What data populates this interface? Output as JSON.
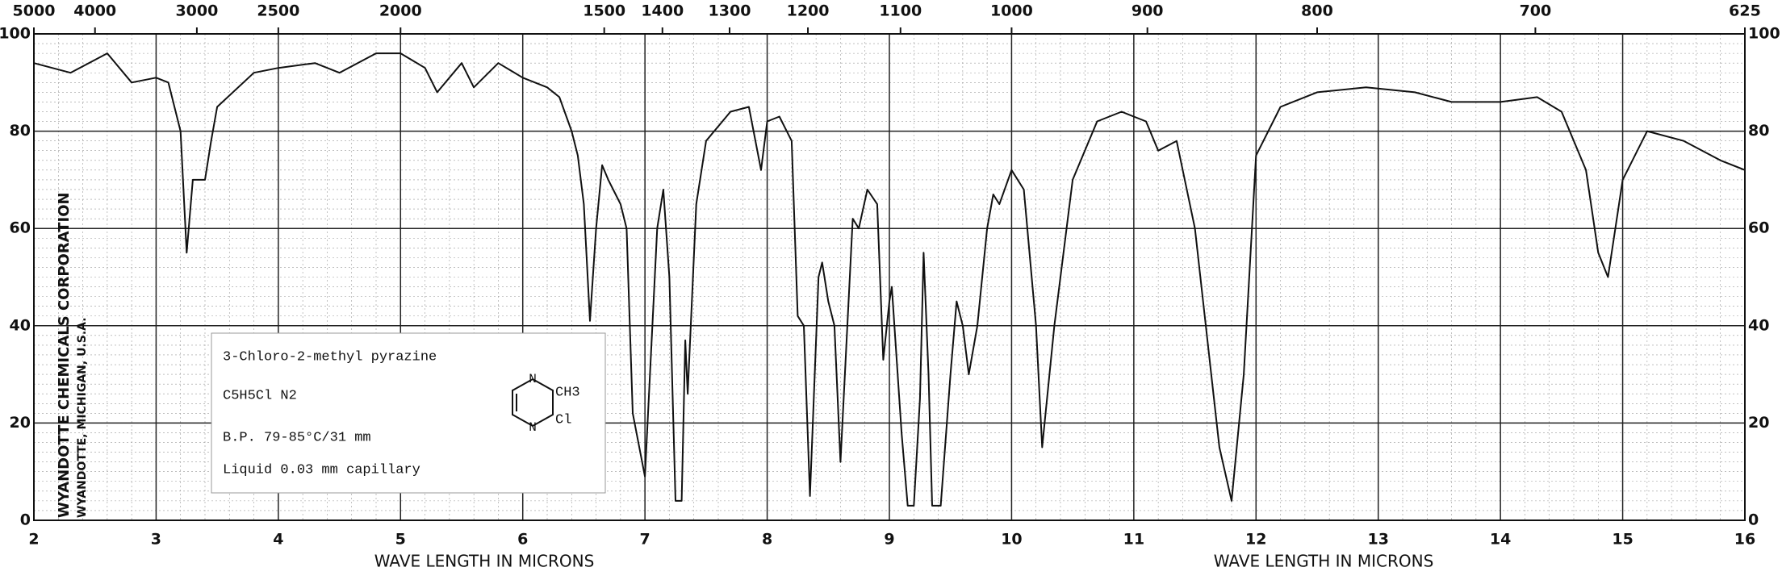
{
  "chart_data": {
    "type": "line",
    "x_label": "WAVE LENGTH IN MICRONS",
    "xlim": [
      2,
      16
    ],
    "xticks": [
      2,
      3,
      4,
      5,
      6,
      7,
      8,
      9,
      10,
      11,
      12,
      13,
      14,
      15,
      16
    ],
    "ylim": [
      0,
      100
    ],
    "yticks": [
      0,
      20,
      40,
      60,
      80,
      100
    ],
    "x2ticks": [
      5000,
      4000,
      3000,
      2500,
      2000,
      1500,
      1400,
      1300,
      1200,
      1100,
      1000,
      900,
      800,
      700,
      625
    ],
    "grid": true,
    "series": [
      {
        "color": "#111111",
        "x": [
          2.0,
          2.3,
          2.6,
          2.8,
          3.0,
          3.1,
          3.2,
          3.25,
          3.3,
          3.4,
          3.45,
          3.5,
          3.8,
          4.0,
          4.3,
          4.5,
          4.8,
          5.0,
          5.2,
          5.3,
          5.5,
          5.6,
          5.8,
          6.0,
          6.2,
          6.3,
          6.4,
          6.45,
          6.5,
          6.55,
          6.6,
          6.65,
          6.7,
          6.8,
          6.85,
          6.9,
          7.0,
          7.1,
          7.15,
          7.2,
          7.25,
          7.3,
          7.33,
          7.35,
          7.42,
          7.5,
          7.7,
          7.85,
          7.95,
          8.0,
          8.1,
          8.2,
          8.25,
          8.3,
          8.35,
          8.42,
          8.45,
          8.5,
          8.55,
          8.6,
          8.7,
          8.75,
          8.82,
          8.9,
          8.95,
          9.0,
          9.02,
          9.1,
          9.15,
          9.2,
          9.25,
          9.28,
          9.32,
          9.35,
          9.42,
          9.5,
          9.55,
          9.6,
          9.65,
          9.72,
          9.8,
          9.85,
          9.9,
          10.0,
          10.1,
          10.2,
          10.25,
          10.35,
          10.5,
          10.7,
          10.9,
          11.1,
          11.2,
          11.35,
          11.5,
          11.7,
          11.8,
          11.9,
          12.0,
          12.2,
          12.5,
          12.9,
          13.3,
          13.6,
          14.0,
          14.3,
          14.5,
          14.7,
          14.8,
          14.88,
          15.0,
          15.2,
          15.5,
          15.8,
          16.0
        ],
        "values": [
          94,
          92,
          96,
          90,
          91,
          90,
          80,
          55,
          70,
          70,
          78,
          85,
          92,
          93,
          94,
          92,
          96,
          96,
          93,
          88,
          94,
          89,
          94,
          91,
          89,
          87,
          80,
          75,
          65,
          41,
          60,
          73,
          70,
          65,
          60,
          22,
          9,
          60,
          68,
          50,
          4,
          4,
          37,
          26,
          65,
          78,
          84,
          85,
          72,
          82,
          83,
          78,
          42,
          40,
          5,
          50,
          53,
          45,
          40,
          12,
          62,
          60,
          68,
          65,
          33,
          45,
          48,
          18,
          3,
          3,
          25,
          55,
          30,
          3,
          3,
          30,
          45,
          40,
          30,
          40,
          60,
          67,
          65,
          72,
          68,
          40,
          15,
          40,
          70,
          82,
          84,
          82,
          76,
          78,
          60,
          15,
          4,
          30,
          75,
          85,
          88,
          89,
          88,
          86,
          86,
          87,
          84,
          72,
          55,
          50,
          70,
          80,
          78,
          74,
          72
        ]
      }
    ]
  },
  "info_box": {
    "name": "3-Chloro-2-methyl pyrazine",
    "formula": "C5H5Cl N2",
    "bp": "B.P. 79-85°C/31 mm",
    "sample": "Liquid 0.03 mm capillary",
    "structure": {
      "n": "N",
      "ch3": "CH3",
      "cl": "Cl"
    }
  },
  "side_text": [
    "WYANDOTTE CHEMICALS CORPORATION",
    "WYANDOTTE, MICHIGAN, U.S.A."
  ]
}
